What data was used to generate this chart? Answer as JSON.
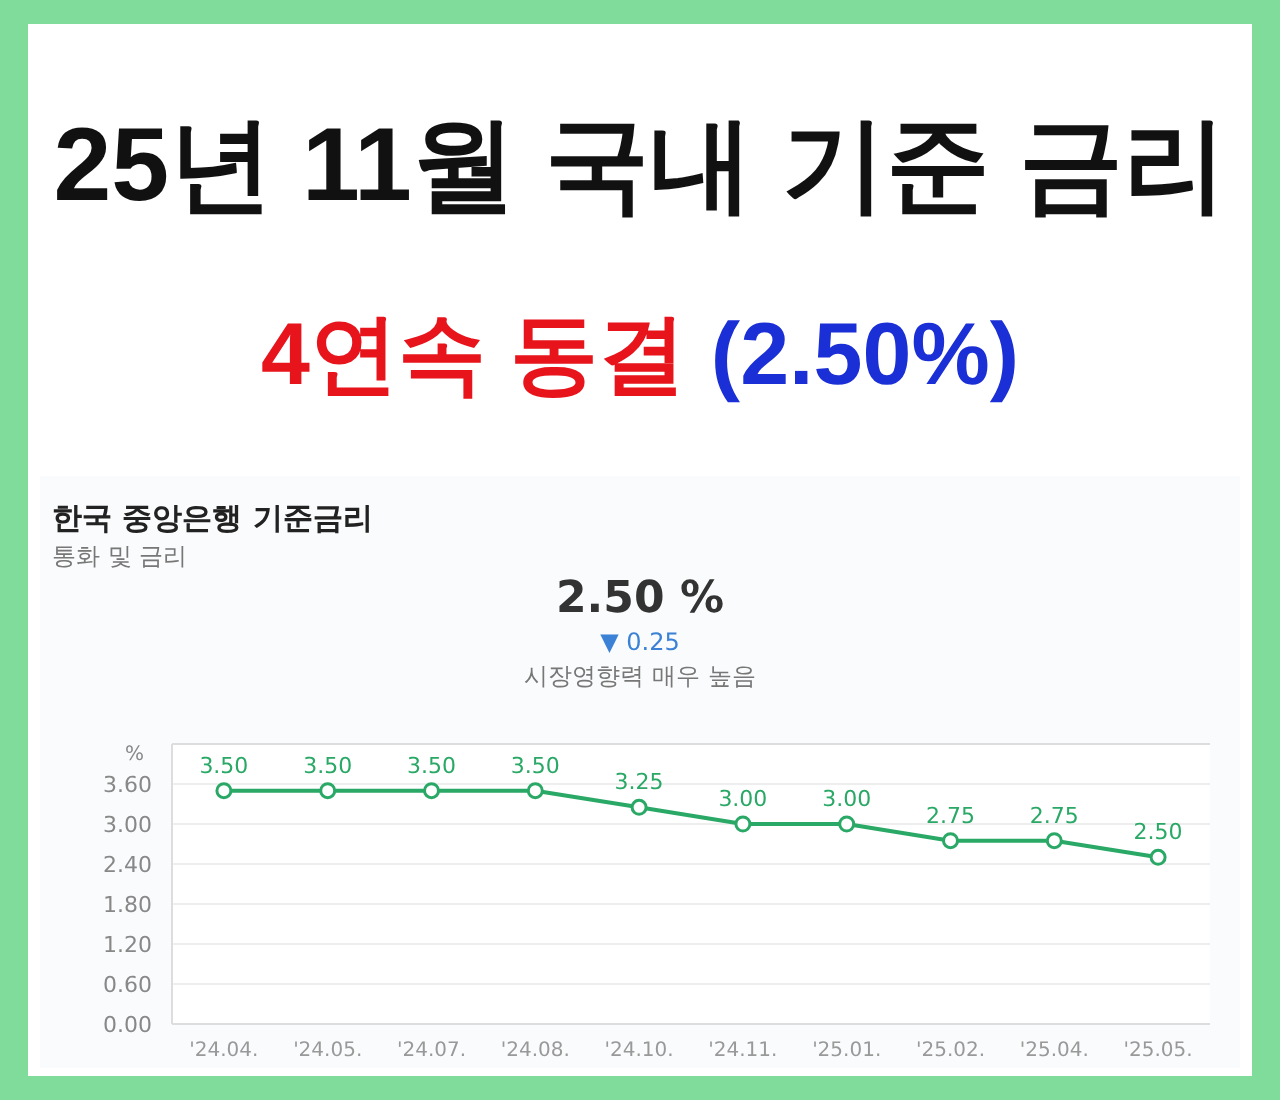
{
  "chart_data": {
    "type": "line",
    "title": "25년 11월 국내 기준 금리",
    "subtitle": "4연속 동결 (2.50%)",
    "annotations": [
      "한국 중앙은행 기준금리",
      "통화 및 금리",
      "2.50 %",
      "▼ 0.25",
      "시장영향력 매우 높음"
    ],
    "ylabel": "%",
    "categories": [
      "'24.04.",
      "'24.05.",
      "'24.07.",
      "'24.08.",
      "'24.10.",
      "'24.11.",
      "'25.01.",
      "'25.02.",
      "'25.04.",
      "'25.05."
    ],
    "series": [
      {
        "color": "#2aa866",
        "values": [
          3.5,
          3.5,
          3.5,
          3.5,
          3.25,
          3.0,
          3.0,
          2.75,
          2.75,
          2.5
        ],
        "value_labels": [
          "3.50",
          "3.50",
          "3.50",
          "3.50",
          "3.25",
          "3.00",
          "3.00",
          "2.75",
          "2.75",
          "2.50"
        ]
      }
    ],
    "ylim": [
      0,
      4.2
    ],
    "yticks": [
      {
        "value": 0,
        "label": "0.00"
      },
      {
        "value": 0.6,
        "label": "0.60"
      },
      {
        "value": 1.2,
        "label": "1.20"
      },
      {
        "value": 1.8,
        "label": "1.80"
      },
      {
        "value": 2.4,
        "label": "2.40"
      },
      {
        "value": 3.0,
        "label": "3.00"
      },
      {
        "value": 3.6,
        "label": "3.60"
      }
    ],
    "grid": "y",
    "marker": "circle",
    "line_style": "solid"
  }
}
